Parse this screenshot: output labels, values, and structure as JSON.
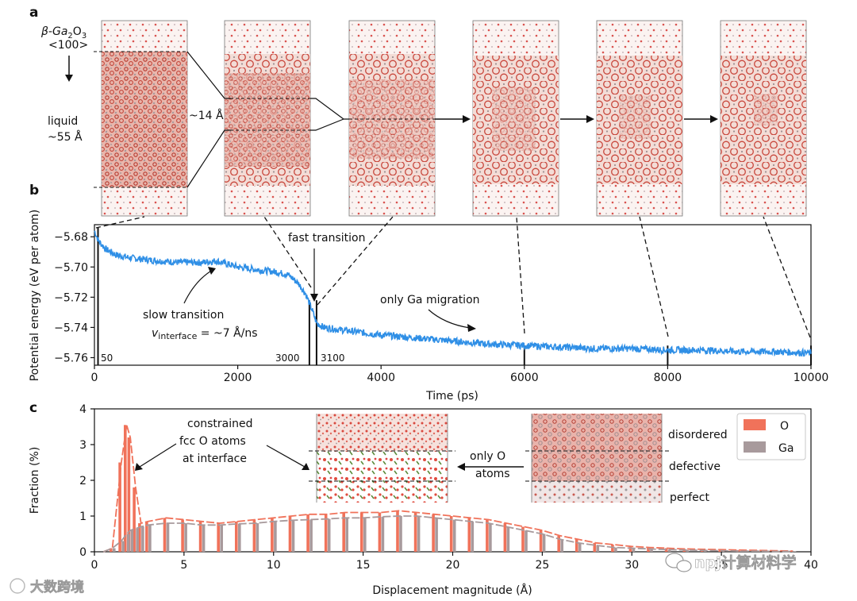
{
  "panel_a": {
    "letter": "a",
    "crystal_label": "β-Ga",
    "crystal_sub1": "2",
    "crystal_mid": "O",
    "crystal_sub2": "3",
    "direction": "<100>",
    "liquid_label": "liquid",
    "liquid_size": "~55 Å",
    "width_label": "~14 Å"
  },
  "panel_b": {
    "letter": "b",
    "annotations": {
      "fast": "fast transition",
      "slow": "slow transition",
      "velocity_v": "v",
      "velocity_sub": "interface",
      "velocity_rest": " = ~7 Å/ns",
      "ga": "only Ga migration"
    },
    "markers": [
      "50",
      "3000",
      "3100"
    ]
  },
  "panel_c": {
    "letter": "c",
    "annotations": {
      "fcc1": "constrained",
      "fcc2": "fcc O atoms",
      "fcc3": "at interface",
      "only1": "only O",
      "only2": "atoms"
    },
    "layers": [
      "disordered",
      "defective",
      "perfect"
    ]
  },
  "watermarks": {
    "left": "大数跨境",
    "right": "npj计算材料学"
  },
  "chart_data": [
    {
      "type": "line",
      "xlabel": "Time (ps)",
      "ylabel": "Potential energy (eV per atom)",
      "xlim": [
        0,
        10000
      ],
      "ylim": [
        -5.765,
        -5.672
      ],
      "xticks": [
        0,
        2000,
        4000,
        6000,
        8000,
        10000
      ],
      "yticks": [
        -5.68,
        -5.7,
        -5.72,
        -5.74,
        -5.76
      ],
      "ytick_labels": [
        "−5.68",
        "−5.70",
        "−5.72",
        "−5.74",
        "−5.76"
      ],
      "grid": false,
      "color": "#2f8fe6",
      "vlines": [
        50,
        3000,
        3100,
        6000,
        8000,
        10000
      ],
      "series": [
        {
          "x": [
            0,
            50,
            150,
            300,
            500,
            700,
            900,
            1200,
            1500,
            1700,
            2000,
            2300,
            2500,
            2700,
            2850,
            2950,
            3000,
            3050,
            3100,
            3200,
            3500,
            4000,
            4500,
            5000,
            5500,
            6000,
            6500,
            7000,
            7500,
            8000,
            8500,
            9000,
            9500,
            10000
          ],
          "y": [
            -5.676,
            -5.682,
            -5.688,
            -5.692,
            -5.694,
            -5.695,
            -5.696,
            -5.697,
            -5.697,
            -5.696,
            -5.7,
            -5.702,
            -5.703,
            -5.705,
            -5.711,
            -5.718,
            -5.724,
            -5.73,
            -5.737,
            -5.74,
            -5.742,
            -5.745,
            -5.747,
            -5.749,
            -5.751,
            -5.752,
            -5.753,
            -5.754,
            -5.754,
            -5.755,
            -5.755,
            -5.756,
            -5.756,
            -5.757
          ]
        }
      ]
    },
    {
      "type": "bar",
      "xlabel": "Displacement magnitude (Å)",
      "ylabel": "Fraction (%)",
      "xlim": [
        0,
        40
      ],
      "ylim": [
        0,
        4
      ],
      "xticks": [
        0,
        5,
        10,
        15,
        20,
        25,
        30,
        35,
        40
      ],
      "yticks": [
        0,
        1,
        2,
        3,
        4
      ],
      "grid": false,
      "legend": "top-right",
      "series": [
        {
          "name": "O",
          "color": "#f0725a",
          "x": [
            0.5,
            1.0,
            1.5,
            1.8,
            2.0,
            2.3,
            2.6,
            3.0,
            4,
            5,
            6,
            7,
            8,
            9,
            10,
            11,
            12,
            13,
            14,
            15,
            16,
            17,
            18,
            19,
            20,
            21,
            22,
            23,
            24,
            25,
            26,
            27,
            28,
            29,
            30,
            31,
            32,
            33,
            34,
            35,
            36,
            37,
            38,
            39
          ],
          "y": [
            0.0,
            0.1,
            2.5,
            3.55,
            3.2,
            1.8,
            0.8,
            0.85,
            0.95,
            0.9,
            0.85,
            0.8,
            0.85,
            0.9,
            0.95,
            1.0,
            1.05,
            1.05,
            1.1,
            1.1,
            1.1,
            1.15,
            1.1,
            1.05,
            1.0,
            0.95,
            0.9,
            0.8,
            0.7,
            0.6,
            0.45,
            0.35,
            0.25,
            0.2,
            0.15,
            0.12,
            0.1,
            0.08,
            0.07,
            0.06,
            0.05,
            0.04,
            0.03,
            0.02
          ]
        },
        {
          "name": "Ga",
          "color": "#a89a9c",
          "x": [
            0.5,
            1.0,
            1.5,
            1.8,
            2.0,
            2.3,
            2.6,
            3.0,
            4,
            5,
            6,
            7,
            8,
            9,
            10,
            11,
            12,
            13,
            14,
            15,
            16,
            17,
            18,
            19,
            20,
            21,
            22,
            23,
            24,
            25,
            26,
            27,
            28,
            29,
            30,
            31,
            32,
            33,
            34,
            35,
            36,
            37,
            38,
            39
          ],
          "y": [
            0.0,
            0.1,
            0.3,
            0.5,
            0.6,
            0.65,
            0.7,
            0.75,
            0.8,
            0.8,
            0.75,
            0.75,
            0.78,
            0.8,
            0.85,
            0.88,
            0.9,
            0.92,
            0.95,
            0.95,
            0.98,
            1.0,
            1.0,
            0.95,
            0.9,
            0.85,
            0.8,
            0.7,
            0.6,
            0.5,
            0.35,
            0.25,
            0.18,
            0.12,
            0.1,
            0.08,
            0.06,
            0.05,
            0.04,
            0.03,
            0.02,
            0.02,
            0.01,
            0.01
          ]
        }
      ]
    }
  ]
}
